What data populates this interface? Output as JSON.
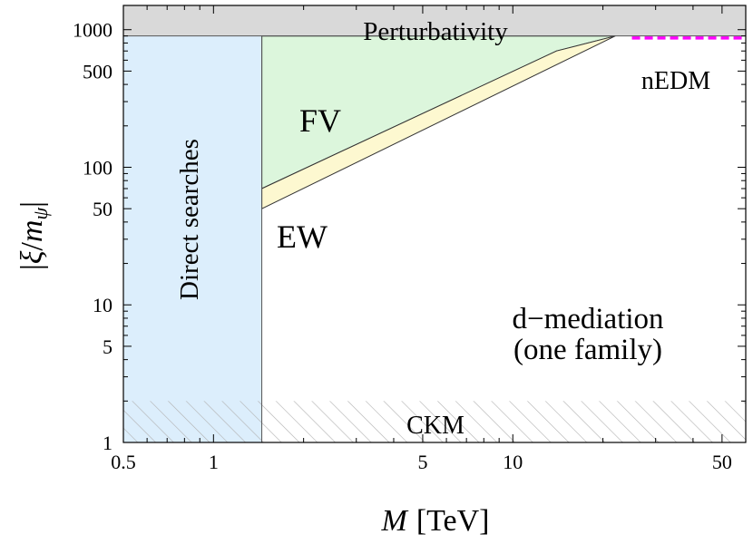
{
  "chart_data": {
    "type": "area",
    "x_axis": {
      "label_symbol": "M",
      "label_unit": "[TeV]",
      "scale": "log",
      "range": [
        0.5,
        60
      ],
      "ticks": [
        {
          "value": 0.5,
          "label": "0.5"
        },
        {
          "value": 1,
          "label": "1"
        },
        {
          "value": 5,
          "label": "5"
        },
        {
          "value": 10,
          "label": "10"
        },
        {
          "value": 50,
          "label": "50"
        }
      ]
    },
    "y_axis": {
      "label": "|ξ/m_ψ|",
      "label_parts": {
        "bar_left": "|",
        "xi": "ξ",
        "slash": "/",
        "m": "m",
        "sub": "ψ",
        "bar_right": "|"
      },
      "scale": "log",
      "range": [
        1,
        1500
      ],
      "ticks": [
        {
          "value": 1,
          "label": "1"
        },
        {
          "value": 5,
          "label": "5"
        },
        {
          "value": 10,
          "label": "10"
        },
        {
          "value": 50,
          "label": "50"
        },
        {
          "value": 100,
          "label": "100"
        },
        {
          "value": 500,
          "label": "500"
        },
        {
          "value": 1000,
          "label": "1000"
        }
      ]
    },
    "regions": [
      {
        "name": "Perturbativity",
        "label": "Perturbativity",
        "color": "#d9d9d9",
        "x_range": [
          0.5,
          60
        ],
        "y_range": [
          900,
          1500
        ]
      },
      {
        "name": "Direct searches",
        "label": "Direct searches",
        "color": "#dceefc",
        "x_range": [
          0.5,
          1.45
        ],
        "y_range": [
          1,
          900
        ]
      },
      {
        "name": "FV",
        "label": "FV",
        "color": "#dcf6dc",
        "polygon": [
          [
            1.45,
            70
          ],
          [
            1.45,
            900
          ],
          [
            22,
            900
          ],
          [
            14,
            700
          ]
        ]
      },
      {
        "name": "EW",
        "label": "EW",
        "color": "#fdf8d0",
        "polygon": [
          [
            1.45,
            50
          ],
          [
            1.45,
            70
          ],
          [
            14,
            700
          ],
          [
            22,
            900
          ]
        ]
      },
      {
        "name": "CKM",
        "label": "CKM",
        "pattern": "hatched",
        "color": "#b0b0b0",
        "x_range": [
          0.5,
          60
        ],
        "y_range": [
          1,
          2
        ]
      },
      {
        "name": "nEDM",
        "label": "nEDM",
        "style": "dashed",
        "color": "#ff00ff",
        "x_range": [
          25,
          60
        ],
        "y": 870
      }
    ],
    "annotation": {
      "line1": "d−mediation",
      "line2": "(one family)"
    }
  }
}
